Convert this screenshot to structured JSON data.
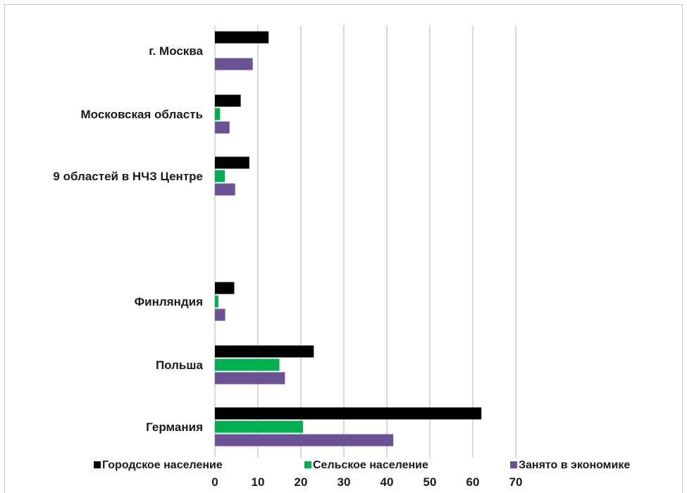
{
  "chart_data": {
    "type": "bar",
    "orientation": "horizontal",
    "categories": [
      "г. Москва",
      "Московская область",
      "9 областей в НЧЗ Центре",
      "Финляндия",
      "Польша",
      "Германия"
    ],
    "series": [
      {
        "name": "Городское население",
        "color": "#000000",
        "values": [
          12.5,
          6,
          8,
          4.5,
          23,
          62
        ]
      },
      {
        "name": "Сельское население",
        "color": "#00b050",
        "values": [
          0,
          1.2,
          2.3,
          0.8,
          15,
          20.5
        ]
      },
      {
        "name": "Занято в экономике",
        "color": "#6a5295",
        "values": [
          8.8,
          3.4,
          4.7,
          2.4,
          16.3,
          41.5
        ]
      }
    ],
    "xlim": [
      0,
      70
    ],
    "xticks": [
      "0",
      "10",
      "20",
      "30",
      "40",
      "50",
      "60",
      "70"
    ],
    "grid": true,
    "legend_position": "bottom"
  }
}
